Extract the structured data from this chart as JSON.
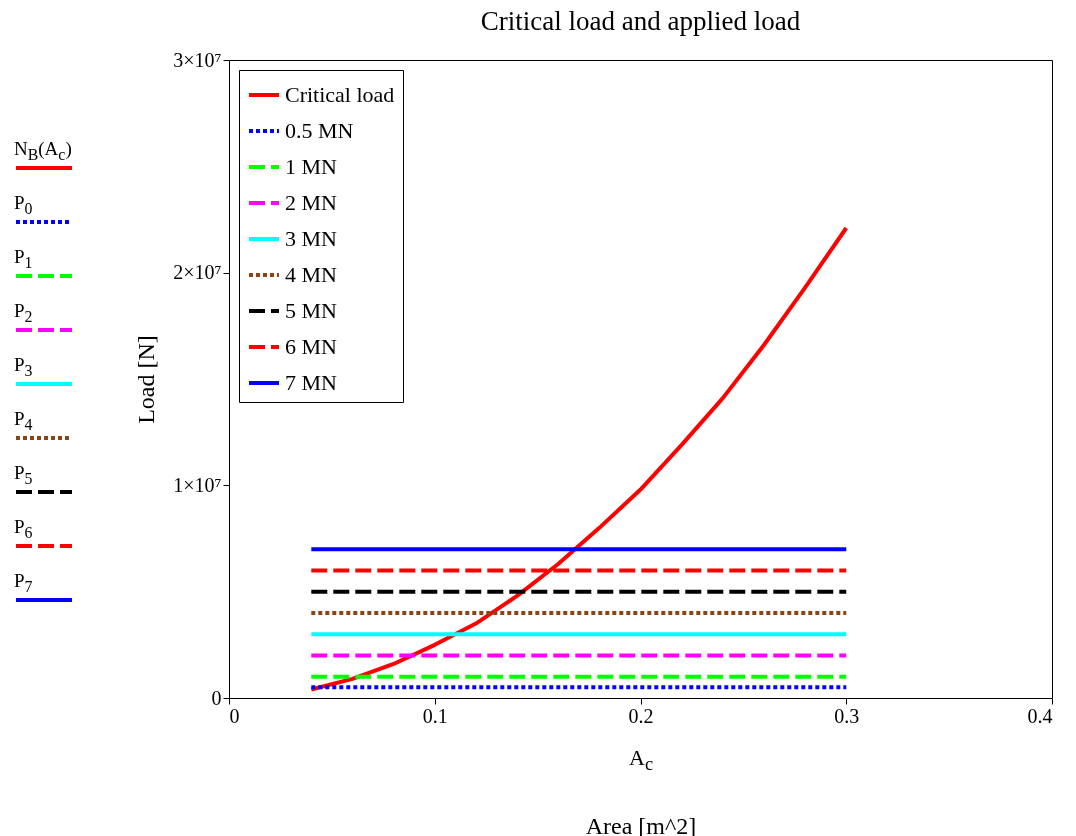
{
  "chart_data": {
    "type": "line",
    "title": "Critical load and applied load",
    "xlabel": "Area [m^2]",
    "ylabel": "Load [N]",
    "xlim": [
      0,
      0.4
    ],
    "xticks": [
      0,
      0.1,
      0.2,
      0.3,
      0.4
    ],
    "ylim": [
      0,
      30000000
    ],
    "yticks": [
      0,
      {
        "value": 10000000,
        "label": "1×10⁷"
      },
      {
        "value": 20000000,
        "label": "2×10⁷"
      },
      {
        "value": 30000000,
        "label": "3×10⁷"
      }
    ],
    "grid": false,
    "legend": "top left",
    "marker": "none",
    "annotations": [
      "N$_{B}$(A$_{c}$)",
      "P$_{0}$",
      "P$_{1}$",
      "P$_{2}$",
      "P$_{3}$",
      "P$_{4}$",
      "P$_{5}$",
      "P$_{6}$",
      "P$_{7}$",
      "A$_{c}$"
    ],
    "series": [
      {
        "name": "Critical load",
        "color": "#ff0000",
        "line_style": "solid",
        "x": [
          0.04,
          0.06,
          0.08,
          0.1,
          0.12,
          0.14,
          0.16,
          0.18,
          0.2,
          0.22,
          0.24,
          0.26,
          0.28,
          0.3
        ],
        "values": [
          400000,
          900000,
          1600000,
          2500000,
          3500000,
          4800000,
          6300000,
          8000000,
          9800000,
          11900000,
          14100000,
          16600000,
          19300000,
          22100000
        ]
      },
      {
        "name": "0.5 MN",
        "color": "#0000ff",
        "line_style": "dotted",
        "x": [
          0.04,
          0.3
        ],
        "values": [
          500000,
          500000
        ]
      },
      {
        "name": "1 MN",
        "color": "#00ff00",
        "line_style": "dashed",
        "x": [
          0.04,
          0.3
        ],
        "values": [
          1000000,
          1000000
        ]
      },
      {
        "name": "2 MN",
        "color": "#ff00ff",
        "line_style": "dashed",
        "x": [
          0.04,
          0.3
        ],
        "values": [
          2000000,
          2000000
        ]
      },
      {
        "name": "3 MN",
        "color": "#00ffff",
        "line_style": "solid",
        "x": [
          0.04,
          0.3
        ],
        "values": [
          3000000,
          3000000
        ]
      },
      {
        "name": "4 MN",
        "color": "#8b4513",
        "line_style": "dotted",
        "x": [
          0.04,
          0.3
        ],
        "values": [
          4000000,
          4000000
        ]
      },
      {
        "name": "5 MN",
        "color": "#000000",
        "line_style": "dashed",
        "x": [
          0.04,
          0.3
        ],
        "values": [
          5000000,
          5000000
        ]
      },
      {
        "name": "6 MN",
        "color": "#ff0000",
        "line_style": "dashed",
        "x": [
          0.04,
          0.3
        ],
        "values": [
          6000000,
          6000000
        ]
      },
      {
        "name": "7 MN",
        "color": "#0000ff",
        "line_style": "solid",
        "x": [
          0.04,
          0.3
        ],
        "values": [
          7000000,
          7000000
        ]
      }
    ]
  }
}
